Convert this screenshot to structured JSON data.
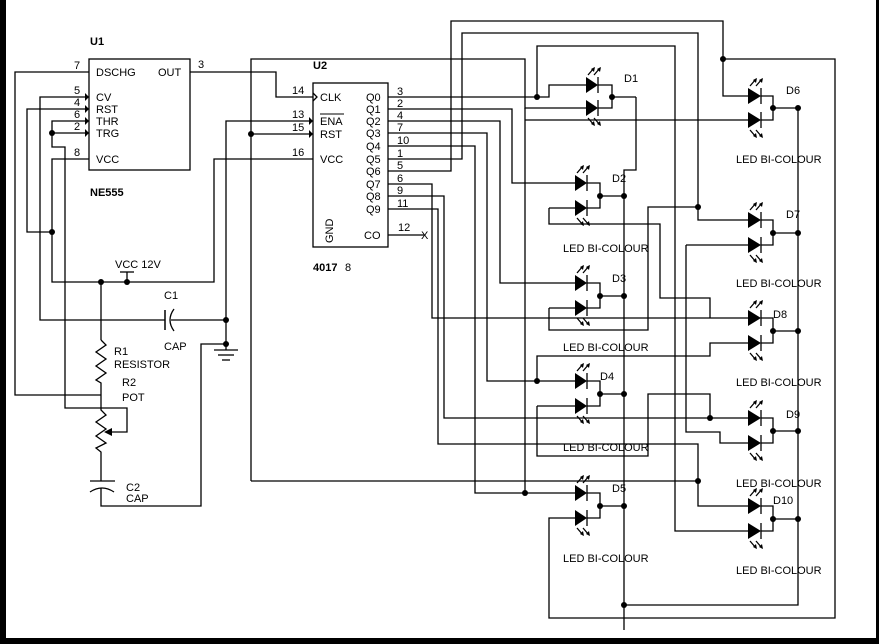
{
  "u1": {
    "ref": "U1",
    "part": "NE555",
    "pins": [
      {
        "name": "DSCHG",
        "num": "7"
      },
      {
        "name": "CV",
        "num": "5"
      },
      {
        "name": "RST",
        "num": "4"
      },
      {
        "name": "THR",
        "num": "6"
      },
      {
        "name": "TRG",
        "num": "2"
      },
      {
        "name": "VCC",
        "num": "8"
      },
      {
        "name": "OUT",
        "num": "3"
      }
    ]
  },
  "u2": {
    "ref": "U2",
    "part": "4017",
    "overlap_text": "8",
    "left_pins": [
      {
        "name": "CLK",
        "num": "14"
      },
      {
        "name": "ENA",
        "num": "13"
      },
      {
        "name": "RST",
        "num": "15"
      },
      {
        "name": "VCC",
        "num": "16"
      }
    ],
    "gnd": "GND",
    "outputs": [
      {
        "name": "Q0",
        "num": "3"
      },
      {
        "name": "Q1",
        "num": "2"
      },
      {
        "name": "Q2",
        "num": "4"
      },
      {
        "name": "Q3",
        "num": "7"
      },
      {
        "name": "Q4",
        "num": "10"
      },
      {
        "name": "Q5",
        "num": "1"
      },
      {
        "name": "Q6",
        "num": "5"
      },
      {
        "name": "Q7",
        "num": "6"
      },
      {
        "name": "Q8",
        "num": "9"
      },
      {
        "name": "Q9",
        "num": "11"
      }
    ],
    "co": {
      "name": "CO",
      "num": "12",
      "nc": "X"
    }
  },
  "power": {
    "vcc": "VCC 12V"
  },
  "passives": {
    "c1": {
      "ref": "C1",
      "type": "CAP"
    },
    "c2": {
      "ref": "C2",
      "type": "CAP"
    },
    "r1": {
      "ref": "R1",
      "type": "RESISTOR"
    },
    "r2": {
      "ref": "R2",
      "type": "POT"
    }
  },
  "leds": [
    {
      "ref": "D1",
      "type": ""
    },
    {
      "ref": "D2",
      "type": "LED BI-COLOUR"
    },
    {
      "ref": "D3",
      "type": "LED BI-COLOUR"
    },
    {
      "ref": "D4",
      "type": "LED BI-COLOUR"
    },
    {
      "ref": "D5",
      "type": "LED BI-COLOUR"
    },
    {
      "ref": "D6",
      "type": "LED BI-COLOUR"
    },
    {
      "ref": "D7",
      "type": "LED BI-COLOUR"
    },
    {
      "ref": "D8",
      "type": "LED BI-COLOUR"
    },
    {
      "ref": "D9",
      "type": "LED BI-COLOUR"
    },
    {
      "ref": "D10",
      "type": "LED BI-COLOUR"
    }
  ]
}
